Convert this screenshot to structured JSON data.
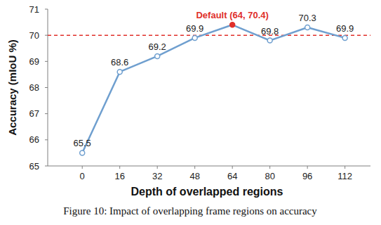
{
  "chart_data": {
    "type": "line",
    "x_label": "Depth of overlapped regions",
    "y_label": "Accuracy (mIoU %)",
    "caption": "Figure 10: Impact of overlapping frame regions on accuracy",
    "categories": [
      "0",
      "16",
      "32",
      "48",
      "64",
      "80",
      "96",
      "112"
    ],
    "values": [
      65.5,
      68.6,
      69.2,
      69.9,
      70.4,
      69.8,
      70.3,
      69.9
    ],
    "color": "#6f9fcf",
    "marker": "circle",
    "data_labels": true,
    "grid": false,
    "ylim": [
      65,
      71
    ],
    "yticks": [
      65,
      66,
      67,
      68,
      69,
      70,
      71
    ],
    "reference_lines": [
      {
        "value": 70,
        "color": "#e0302b",
        "line_style": "dashed"
      }
    ],
    "annotations": [
      {
        "text": "Default (64, 70.4)",
        "category": "64",
        "value": 70.4,
        "color": "#e0302b"
      }
    ]
  }
}
